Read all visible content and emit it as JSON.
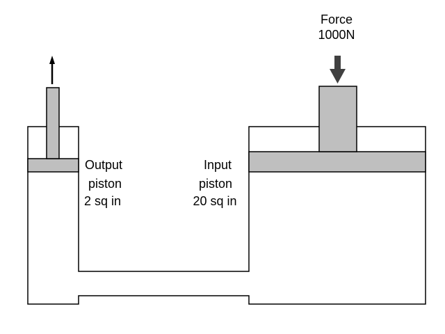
{
  "colors": {
    "outline": "#000000",
    "piston_fill": "#bfbfbf",
    "arrow_fill": "#404040",
    "background": "#ffffff"
  },
  "force": {
    "line1": "Force",
    "line2": "1000N"
  },
  "output_piston": {
    "line1": "Output",
    "line2": "piston",
    "line3": "2 sq in"
  },
  "input_piston": {
    "line1": "Input",
    "line2": "piston",
    "line3": "20 sq in"
  },
  "icons": {
    "up_arrow": "small-up-arrow-icon",
    "down_arrow": "force-down-arrow-icon"
  }
}
